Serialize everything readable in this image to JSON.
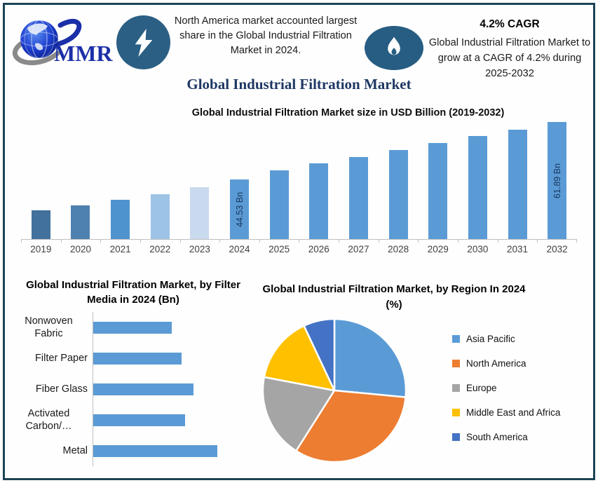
{
  "colors": {
    "frame_border": "#1d4355",
    "badge_blue": "#2b5f84",
    "accent_navy": "#1F3864",
    "bar_blue": "#5B9BD5",
    "axis_gray": "#bfbfbf",
    "bar_label_navy": "#17375E"
  },
  "header": {
    "logo_text": "MMR",
    "note_left": {
      "icon": "lightning-bolt",
      "text": "North America market accounted largest share in the Global Industrial Filtration Market in 2024."
    },
    "note_right": {
      "icon": "flame",
      "cagr_title": "4.2% CAGR",
      "text": "Global Industrial Filtration Market to grow at a CAGR of 4.2% during 2025-2032"
    },
    "main_title": "Global Industrial Filtration Market"
  },
  "chart_data": [
    {
      "id": "market_size_bar",
      "type": "bar",
      "title": "Global Industrial Filtration Market size in USD Billion (2019-2032)",
      "categories": [
        "2019",
        "2020",
        "2021",
        "2022",
        "2023",
        "2024",
        "2025",
        "2026",
        "2027",
        "2028",
        "2029",
        "2030",
        "2031",
        "2032"
      ],
      "values": [
        35.1,
        36.6,
        38.3,
        40.0,
        42.2,
        44.53,
        47.3,
        49.4,
        51.2,
        53.3,
        55.5,
        57.6,
        59.5,
        61.89
      ],
      "unit": "USD Bn",
      "data_labels": {
        "2024": "44.53 Bn",
        "2032": "61.89 Bn"
      },
      "bar_colors": [
        "#41719C",
        "#4E81B0",
        "#4F93CE",
        "#9DC3E6",
        "#C9D9EE",
        "#5B9BD5",
        "#5B9BD5",
        "#5B9BD5",
        "#5B9BD5",
        "#5B9BD5",
        "#5B9BD5",
        "#5B9BD5",
        "#5B9BD5",
        "#5B9BD5"
      ],
      "ylim": [
        26.5,
        62.5
      ],
      "grid": false,
      "note": "Only 2024 and 2032 carry data labels; other values estimated from bar heights following the 4.2% CAGR trend."
    },
    {
      "id": "filter_media_bar",
      "type": "bar",
      "orientation": "horizontal",
      "title": "Global Industrial Filtration Market, by Filter Media in 2024 (Bn)",
      "categories": [
        "Nonwoven Fabric",
        "Filter Paper",
        "Fiber Glass",
        "Activated Carbon/…",
        "Metal"
      ],
      "values_relative": [
        63,
        71,
        81,
        74,
        100
      ],
      "bar_color": "#5B9BD5",
      "note": "No numeric labels shown; bar lengths are relative estimates (Metal = 100)."
    },
    {
      "id": "region_pie",
      "type": "pie",
      "title": "Global Industrial Filtration Market, by Region In 2024 (%)",
      "legend_position": "right",
      "slices": [
        {
          "label": "Asia Pacific",
          "value": 26.5,
          "color": "#5B9BD5"
        },
        {
          "label": "North America",
          "value": 32.5,
          "color": "#ED7D31"
        },
        {
          "label": "Europe",
          "value": 19,
          "color": "#A5A5A5"
        },
        {
          "label": "Middle East and Africa",
          "value": 15,
          "color": "#FFC000"
        },
        {
          "label": "South America",
          "value": 7,
          "color": "#4472C4"
        }
      ],
      "note": "No percentage labels shown; slice values estimated from angles."
    }
  ]
}
